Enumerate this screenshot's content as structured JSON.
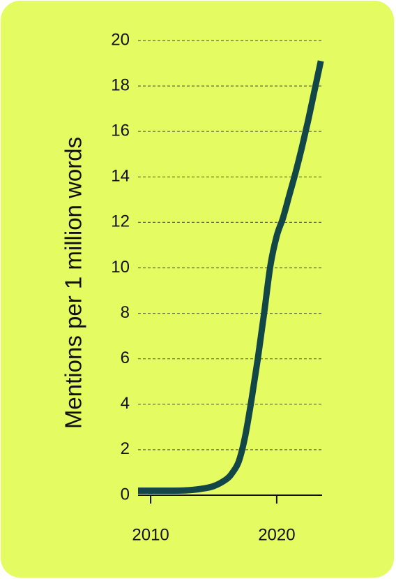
{
  "chart_data": {
    "type": "line",
    "title": "",
    "xlabel": "",
    "ylabel": "Mentions per 1 million words",
    "xlim": [
      2009,
      2023.6
    ],
    "ylim": [
      0,
      20
    ],
    "yticks": [
      0,
      2,
      4,
      6,
      8,
      10,
      12,
      14,
      16,
      18,
      20
    ],
    "xticks": [
      2010,
      2020
    ],
    "grid": "horizontal dashed",
    "series": [
      {
        "x": [
          2009,
          2010,
          2011,
          2012,
          2013,
          2014,
          2015,
          2016,
          2016.5,
          2017,
          2017.5,
          2018,
          2018.5,
          2019,
          2019.5,
          2020,
          2020.5,
          2021,
          2021.5,
          2022,
          2022.5,
          2023,
          2023.5
        ],
        "y": [
          0.2,
          0.2,
          0.2,
          0.2,
          0.22,
          0.28,
          0.4,
          0.7,
          1.0,
          1.5,
          2.6,
          4.2,
          6.0,
          8.0,
          10.1,
          11.4,
          12.2,
          13.2,
          14.2,
          15.3,
          16.5,
          17.8,
          19.1
        ]
      }
    ]
  },
  "colors": {
    "background": "#e4fb62",
    "line": "#134747",
    "grid": "#5a6a3a",
    "axis": "#111111"
  }
}
